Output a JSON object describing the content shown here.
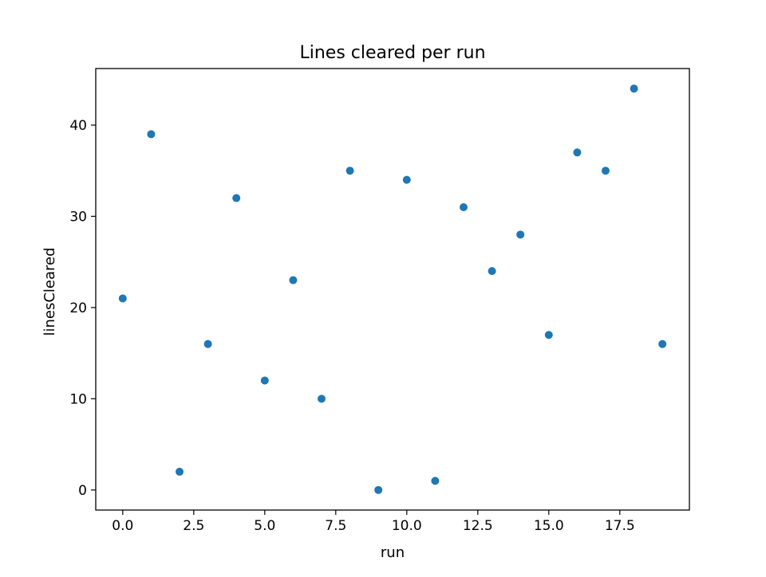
{
  "chart_data": {
    "type": "scatter",
    "title": "Lines cleared per run",
    "xlabel": "run",
    "ylabel": "linesCleared",
    "xlim": [
      -0.95,
      19.95
    ],
    "ylim": [
      -2.2,
      46.2
    ],
    "xticks": [
      0.0,
      2.5,
      5.0,
      7.5,
      10.0,
      12.5,
      15.0,
      17.5
    ],
    "xtick_labels": [
      "0.0",
      "2.5",
      "5.0",
      "7.5",
      "10.0",
      "12.5",
      "15.0",
      "17.5"
    ],
    "yticks": [
      0,
      10,
      20,
      30,
      40
    ],
    "ytick_labels": [
      "0",
      "10",
      "20",
      "30",
      "40"
    ],
    "grid": false,
    "series": [
      {
        "color": "#1f77b4",
        "x": [
          0,
          1,
          2,
          3,
          4,
          5,
          6,
          7,
          8,
          9,
          10,
          11,
          12,
          13,
          14,
          15,
          16,
          17,
          18,
          19
        ],
        "y": [
          21,
          39,
          2,
          16,
          32,
          12,
          23,
          10,
          35,
          0,
          34,
          1,
          31,
          24,
          28,
          17,
          37,
          35,
          44,
          16
        ]
      }
    ]
  }
}
